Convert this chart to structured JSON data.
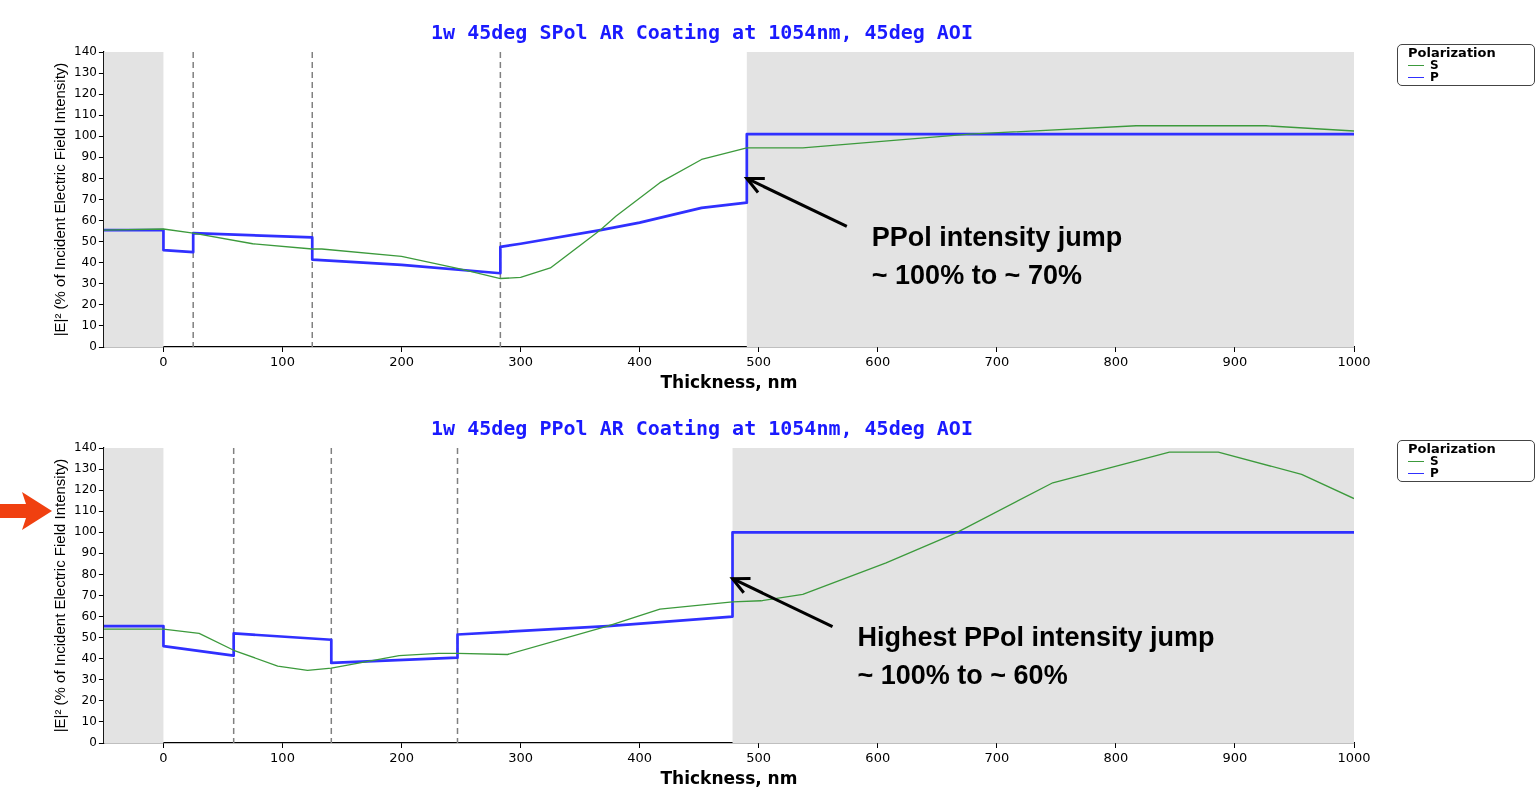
{
  "chart_data": [
    {
      "type": "line",
      "title": "1w 45deg SPol AR Coating at 1054nm, 45deg AOI",
      "xlabel": "Thickness, nm",
      "ylabel": "|E|² (% of Incident Electric Field Intensity)",
      "legend_title": "Polarization",
      "legend": "top right",
      "grid": false,
      "marker": "none",
      "line_style": "solid",
      "xlim": [
        -50,
        1000
      ],
      "xticks": [
        0,
        100,
        200,
        300,
        400,
        500,
        600,
        700,
        800,
        900,
        1000
      ],
      "ylim": [
        0,
        140
      ],
      "yticks": [
        0,
        10,
        20,
        30,
        40,
        50,
        60,
        70,
        80,
        90,
        100,
        110,
        120,
        130,
        140
      ],
      "series": [
        {
          "name": "S",
          "color": "#3c9a3c",
          "x": [
            -50,
            0,
            25,
            75,
            125,
            133,
            200,
            250,
            283,
            300,
            325,
            367,
            380,
            417,
            452,
            490,
            537,
            677,
            817,
            926,
            1000
          ],
          "values": [
            55.5,
            56,
            54,
            49,
            46.5,
            46.5,
            43,
            37,
            32.5,
            33,
            37.5,
            55.5,
            62,
            78,
            89,
            94.5,
            94.5,
            101,
            105,
            105,
            102.5
          ]
        },
        {
          "name": "P",
          "color": "#3030ff",
          "x": [
            -50,
            0,
            0,
            25,
            25,
            125,
            125,
            200,
            283,
            283,
            300,
            367,
            400,
            452,
            490,
            490,
            1000
          ],
          "values": [
            55.5,
            55.5,
            46,
            45,
            54,
            52,
            41.5,
            39,
            35,
            47.5,
            49,
            55.5,
            59,
            66,
            68.5,
            101,
            101
          ]
        }
      ],
      "bands": [
        {
          "axis": "x",
          "from": -50,
          "to": 0,
          "color": "#e3e3e3"
        },
        {
          "axis": "x",
          "from": 490,
          "to": 1000,
          "color": "#e3e3e3"
        }
      ],
      "ref_lines": [
        {
          "axis": "x",
          "value": 25,
          "color": "#808080",
          "line_style": "dashed"
        },
        {
          "axis": "x",
          "value": 125,
          "color": "#808080",
          "line_style": "dashed"
        },
        {
          "axis": "x",
          "value": 283,
          "color": "#808080",
          "line_style": "dashed"
        }
      ],
      "annotations": [
        {
          "text": "PPol intensity jump\n~ 100% to ~ 70%",
          "x": 490,
          "y": 80
        }
      ]
    },
    {
      "type": "line",
      "title": "1w 45deg PPol AR Coating at 1054nm, 45deg AOI",
      "xlabel": "Thickness, nm",
      "ylabel": "|E|² (% of Incident Electric Field Intensity)",
      "legend_title": "Polarization",
      "legend": "top right",
      "grid": false,
      "marker": "none",
      "line_style": "solid",
      "xlim": [
        -50,
        1000
      ],
      "xticks": [
        0,
        100,
        200,
        300,
        400,
        500,
        600,
        700,
        800,
        900,
        1000
      ],
      "ylim": [
        0,
        140
      ],
      "yticks": [
        0,
        10,
        20,
        30,
        40,
        50,
        60,
        70,
        80,
        90,
        100,
        110,
        120,
        130,
        140
      ],
      "series": [
        {
          "name": "S",
          "color": "#3c9a3c",
          "x": [
            -50,
            0,
            30,
            59,
            96,
            121,
            141,
            198,
            231,
            247,
            289,
            373,
            417,
            478,
            502,
            537,
            607,
            665,
            747,
            845,
            886,
            956,
            1000
          ],
          "values": [
            54,
            54,
            52,
            44,
            36.5,
            34.5,
            35.5,
            41.5,
            42.5,
            42.5,
            42,
            55.5,
            63.5,
            67,
            67.5,
            70.5,
            85.5,
            99.5,
            123.5,
            138,
            138,
            127.5,
            116
          ]
        },
        {
          "name": "P",
          "color": "#3030ff",
          "x": [
            -50,
            0,
            0,
            59,
            59,
            141,
            141,
            247,
            247,
            373,
            478,
            478,
            1000
          ],
          "values": [
            55.5,
            55.5,
            46,
            41.5,
            52,
            49,
            38,
            40.5,
            51.5,
            55.5,
            60,
            100,
            100
          ]
        }
      ],
      "bands": [
        {
          "axis": "x",
          "from": -50,
          "to": 0,
          "color": "#e3e3e3"
        },
        {
          "axis": "x",
          "from": 478,
          "to": 1000,
          "color": "#e3e3e3"
        }
      ],
      "ref_lines": [
        {
          "axis": "x",
          "value": 59,
          "color": "#808080",
          "line_style": "dashed"
        },
        {
          "axis": "x",
          "value": 141,
          "color": "#808080",
          "line_style": "dashed"
        },
        {
          "axis": "x",
          "value": 247,
          "color": "#808080",
          "line_style": "dashed"
        }
      ],
      "annotations": [
        {
          "text": "Highest PPol intensity jump\n~ 100% to ~ 60%",
          "x": 478,
          "y": 78
        }
      ]
    }
  ]
}
